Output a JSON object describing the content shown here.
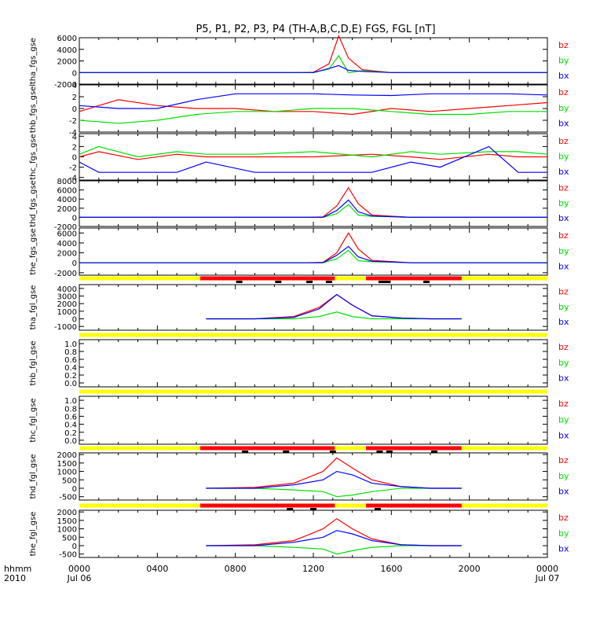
{
  "title": "P5, P1, P2, P3, P4 (TH-A,B,C,D,E) FGS, FGL [nT]",
  "colors": {
    "bz": "#ff0000",
    "by": "#00e000",
    "bx": "#0000ff",
    "bar_yellow": "#ffff00",
    "bar_red": "#ff0000",
    "bar_black": "#000000"
  },
  "legend_labels": [
    "bz",
    "by",
    "bx"
  ],
  "time_axis": {
    "row1": [
      "0000",
      "0400",
      "0800",
      "1200",
      "1600",
      "2000",
      "0000"
    ],
    "row2_left": "Jul 06",
    "row2_right": "Jul 07",
    "left_caption_1": "hhmm",
    "left_caption_2": "2010"
  },
  "chart_data": [
    {
      "type": "line",
      "ylabel": "tha_fgs_gse",
      "yticks": [
        "6000",
        "4000",
        "2000",
        "0",
        "-2000"
      ],
      "ylim": [
        -2000,
        6000
      ],
      "x_hours": [
        0,
        11.0,
        12.0,
        12.8,
        13.3,
        13.8,
        14.5,
        16.0,
        24.0
      ],
      "series": [
        {
          "name": "bz",
          "values": [
            0,
            0,
            50,
            1500,
            6300,
            2500,
            500,
            0,
            0
          ]
        },
        {
          "name": "by",
          "values": [
            0,
            0,
            0,
            600,
            2900,
            0,
            300,
            0,
            0
          ]
        },
        {
          "name": "bx",
          "values": [
            0,
            0,
            0,
            700,
            1200,
            400,
            200,
            0,
            0
          ]
        }
      ]
    },
    {
      "type": "line",
      "ylabel": "thb_fgs_gsel",
      "yticks": [
        "4",
        "2",
        "0",
        "-2",
        "-4"
      ],
      "ylim": [
        -4,
        4
      ],
      "x_hours": [
        0,
        2,
        4,
        6,
        8,
        10,
        12,
        14,
        16,
        18,
        20,
        22,
        24
      ],
      "series": [
        {
          "name": "bz",
          "values": [
            -0.5,
            1.5,
            0.5,
            0,
            0,
            -0.5,
            -0.5,
            -1,
            0,
            -0.5,
            0,
            0.5,
            1
          ]
        },
        {
          "name": "by",
          "values": [
            -2,
            -2.5,
            -2,
            -1,
            -0.5,
            -0.5,
            0,
            0,
            -0.5,
            -1,
            -1,
            -0.5,
            -0.5
          ]
        },
        {
          "name": "bx",
          "values": [
            0.5,
            0,
            0,
            1.5,
            2.5,
            2.5,
            2.5,
            2.3,
            2.2,
            2.5,
            2.5,
            2.5,
            2.3
          ]
        }
      ]
    },
    {
      "type": "line",
      "ylabel": "thc_fgs_gse",
      "yticks": [
        "4",
        "2",
        "0",
        "-2",
        "-4"
      ],
      "ylim": [
        -4.5,
        4.5
      ],
      "x_hours": [
        0,
        1,
        3,
        5,
        6.5,
        9,
        12,
        15,
        17,
        18.5,
        21,
        22.5,
        24
      ],
      "series": [
        {
          "name": "bz",
          "values": [
            0,
            1,
            -0.5,
            0.5,
            0,
            0,
            0,
            0.5,
            0,
            -0.5,
            0.5,
            0,
            0
          ]
        },
        {
          "name": "by",
          "values": [
            0.5,
            2,
            0,
            1,
            0.5,
            0.5,
            1,
            0,
            1,
            0.5,
            1,
            1,
            0.5
          ]
        },
        {
          "name": "bx",
          "values": [
            -1,
            -3,
            -3,
            -3,
            -1,
            -3,
            -3,
            -3,
            -1,
            -2,
            2,
            -3,
            -3
          ]
        }
      ]
    },
    {
      "type": "line",
      "ylabel": "thd_fgs_gse",
      "yticks": [
        "8000",
        "6000",
        "4000",
        "2000",
        "0",
        "-2000"
      ],
      "ylim": [
        -2000,
        8000
      ],
      "x_hours": [
        0,
        11.5,
        12.5,
        13.2,
        13.8,
        14.3,
        15,
        17,
        24
      ],
      "series": [
        {
          "name": "bz",
          "values": [
            0,
            0,
            100,
            2500,
            6500,
            3000,
            500,
            0,
            0
          ]
        },
        {
          "name": "by",
          "values": [
            0,
            0,
            0,
            800,
            2800,
            500,
            200,
            0,
            0
          ]
        },
        {
          "name": "bx",
          "values": [
            0,
            0,
            0,
            1500,
            3800,
            1200,
            300,
            0,
            0
          ]
        }
      ]
    },
    {
      "type": "line",
      "ylabel": "the_fgs_gse",
      "yticks": [
        "6000",
        "4000",
        "2000",
        "0",
        "-2000"
      ],
      "ylim": [
        -2500,
        7000
      ],
      "x_hours": [
        0,
        11.5,
        12.5,
        13.2,
        13.8,
        14.3,
        15,
        17,
        24
      ],
      "series": [
        {
          "name": "bz",
          "values": [
            0,
            0,
            100,
            2000,
            6000,
            2800,
            500,
            0,
            0
          ]
        },
        {
          "name": "by",
          "values": [
            0,
            0,
            0,
            800,
            2500,
            400,
            200,
            0,
            0
          ]
        },
        {
          "name": "bx",
          "values": [
            0,
            0,
            0,
            1500,
            3300,
            1200,
            300,
            0,
            0
          ]
        }
      ]
    },
    {
      "type": "line",
      "ylabel": "tha_fgl_gse",
      "yticks": [
        "4000",
        "3000",
        "2000",
        "1000",
        "0",
        "-1000"
      ],
      "ylim": [
        -1500,
        4500
      ],
      "x_hours": [
        6.5,
        9,
        11,
        12.3,
        13.2,
        14,
        15,
        16.5,
        18,
        19.6
      ],
      "series": [
        {
          "name": "bz",
          "values": [
            0,
            0,
            300,
            1500,
            3200,
            1800,
            400,
            100,
            0,
            0
          ]
        },
        {
          "name": "by",
          "values": [
            0,
            0,
            0,
            300,
            900,
            300,
            0,
            0,
            0,
            0
          ]
        },
        {
          "name": "bx",
          "values": [
            0,
            0,
            200,
            1300,
            3200,
            1800,
            400,
            100,
            0,
            0
          ]
        }
      ]
    },
    {
      "type": "line",
      "ylabel": "thb_fgl_gse",
      "yticks": [
        "1.0",
        "0.8",
        "0.6",
        "0.4",
        "0.2",
        "0.0"
      ],
      "ylim": [
        -0.1,
        1.1
      ],
      "x_hours": [],
      "series": []
    },
    {
      "type": "line",
      "ylabel": "thc_fgl_gse",
      "yticks": [
        "1.0",
        "0.8",
        "0.6",
        "0.4",
        "0.2",
        "0.0"
      ],
      "ylim": [
        -0.1,
        1.1
      ],
      "x_hours": [],
      "series": []
    },
    {
      "type": "line",
      "ylabel": "thd_fgl_gse",
      "yticks": [
        "2000",
        "1500",
        "1000",
        "500",
        "0",
        "-500"
      ],
      "ylim": [
        -700,
        2100
      ],
      "x_hours": [
        6.5,
        9,
        11,
        12.5,
        13.2,
        14,
        15,
        16.5,
        18,
        19.6
      ],
      "series": [
        {
          "name": "bz",
          "values": [
            0,
            50,
            300,
            1000,
            1800,
            1200,
            500,
            100,
            0,
            0
          ]
        },
        {
          "name": "by",
          "values": [
            0,
            0,
            -100,
            -200,
            -500,
            -400,
            -200,
            0,
            0,
            0
          ]
        },
        {
          "name": "bx",
          "values": [
            0,
            0,
            200,
            500,
            1000,
            800,
            300,
            100,
            0,
            0
          ]
        }
      ]
    },
    {
      "type": "line",
      "ylabel": "the_fgl_gse",
      "yticks": [
        "2000",
        "1500",
        "1000",
        "500",
        "0",
        "-500"
      ],
      "ylim": [
        -700,
        2100
      ],
      "x_hours": [
        6.5,
        9,
        11,
        12.5,
        13.2,
        14,
        15,
        16.5,
        18,
        19.6
      ],
      "series": [
        {
          "name": "bz",
          "values": [
            0,
            50,
            300,
            1000,
            1600,
            1000,
            400,
            50,
            0,
            0
          ]
        },
        {
          "name": "by",
          "values": [
            0,
            0,
            -100,
            -200,
            -500,
            -300,
            -100,
            0,
            0,
            0
          ]
        },
        {
          "name": "bx",
          "values": [
            0,
            0,
            200,
            500,
            900,
            700,
            300,
            50,
            0,
            0
          ]
        }
      ]
    }
  ],
  "mode_bars": [
    {
      "after_panel": 4,
      "red_spans_hours": [
        [
          6.2,
          13.1
        ],
        [
          14.7,
          19.6
        ]
      ],
      "black_marks_hours": [
        8.2,
        10.2,
        11.8,
        12.8,
        15.5,
        15.8,
        17.8
      ]
    },
    {
      "after_panel": 5,
      "red_spans_hours": [],
      "black_marks_hours": []
    },
    {
      "after_panel": 6,
      "red_spans_hours": [],
      "black_marks_hours": []
    },
    {
      "after_panel": 7,
      "red_spans_hours": [
        [
          6.2,
          13.1
        ],
        [
          14.7,
          19.6
        ]
      ],
      "black_marks_hours": [
        8.5,
        10.6,
        13.0,
        15.4,
        15.9,
        18.2
      ]
    },
    {
      "after_panel": 8,
      "red_spans_hours": [
        [
          6.2,
          13.1
        ],
        [
          14.7,
          19.6
        ]
      ],
      "black_marks_hours": [
        10.8,
        12.0,
        15.3
      ]
    }
  ]
}
